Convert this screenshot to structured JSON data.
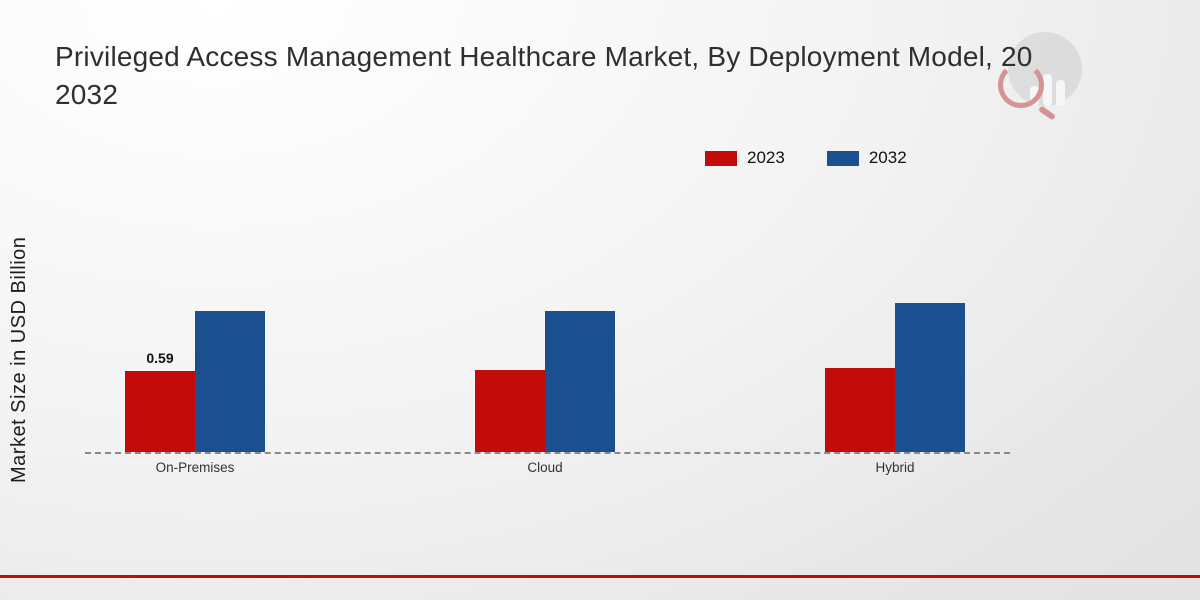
{
  "title": {
    "line1": "Privileged Access Management Healthcare Market, By Deployment Model, 20",
    "line2": "2032"
  },
  "ylabel": "Market Size in USD Billion",
  "legend": [
    {
      "label": "2023",
      "color": "#c20b0a"
    },
    {
      "label": "2032",
      "color": "#1b4f8f"
    }
  ],
  "chart_data": {
    "type": "bar",
    "title": "Privileged Access Management Healthcare Market, By Deployment Model, 20 2032",
    "xlabel": "",
    "ylabel": "Market Size in USD Billion",
    "categories": [
      "On-Premises",
      "Cloud",
      "Hybrid"
    ],
    "series": [
      {
        "name": "2023",
        "color": "#c20b0a",
        "values": [
          0.59,
          0.6,
          0.61
        ],
        "labels": [
          "0.59",
          "",
          ""
        ]
      },
      {
        "name": "2032",
        "color": "#1b4f8f",
        "values": [
          1.03,
          1.03,
          1.09
        ],
        "labels": [
          "",
          "",
          ""
        ]
      }
    ],
    "ylim": [
      0,
      1.2
    ],
    "grid": false,
    "baseline_style": "dashed",
    "legend_position": "top-right"
  },
  "accent_colors": {
    "bottom_rule": "#c00b0b",
    "baseline_dash": "#8a8a8a"
  }
}
